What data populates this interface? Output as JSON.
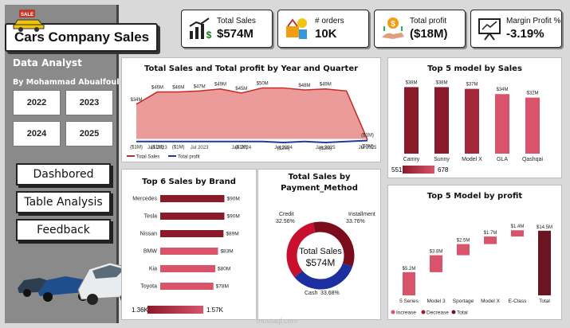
{
  "sidebar": {
    "title": "Cars Company Sales",
    "logo_text": "SALE",
    "role": "Data Analyst",
    "author": "By Mohammad Abualfoul",
    "years": [
      "2022",
      "2023",
      "2024",
      "2025"
    ],
    "nav": [
      "Dashbored",
      "Table Analysis",
      "Feedback"
    ]
  },
  "kpis": [
    {
      "label": "Total Sales",
      "value": "$574M",
      "icon": "sales-chart-icon"
    },
    {
      "label": "# orders",
      "value": "10K",
      "icon": "orders-icon"
    },
    {
      "label": "Total profit",
      "value": "($18M)",
      "icon": "profit-icon"
    },
    {
      "label": "Margin Profit %",
      "value": "-3.19%",
      "icon": "margin-board-icon"
    }
  ],
  "colors": {
    "sales": "#e8908f",
    "sales_line": "#c62828",
    "profit": "#1e3a9a",
    "bar": "#8b1a2b",
    "bar_light": "#d9536b",
    "donut_red": "#c8102e",
    "donut_blue": "#1c2f9e"
  },
  "charts": {
    "area": {
      "title": "Total Sales and Total profit by Year and Quarter",
      "legend": [
        "Total Sales",
        "Total profit"
      ],
      "x_ticks": [
        "Jan 2023",
        "Jul 2023",
        "Jan 2024",
        "Jul 2024",
        "Jan 2025",
        "Jul 2025"
      ]
    },
    "top5_sales": {
      "title": "Top 5 model by Sales",
      "slicer_min": "551",
      "slicer_max": "678"
    },
    "brands": {
      "title": "Top 6 Sales by Brand",
      "slicer_min": "1.36K",
      "slicer_max": "1.57K"
    },
    "payment": {
      "title_line1": "Total Sales by",
      "title_line2": "Payment_Method",
      "center_label": "Total Sales",
      "center_value": "$574M",
      "slices": [
        {
          "name": "Credit",
          "pct": "32.56%",
          "value": 32.56
        },
        {
          "name": "Installment",
          "pct": "33.76%",
          "value": 33.76
        },
        {
          "name": "Cash",
          "pct": "33.68%",
          "value": 33.68
        }
      ]
    },
    "waterfall": {
      "title": "Top 5 Model by profit",
      "legend": [
        "Increase",
        "Decrease",
        "Total"
      ]
    }
  },
  "chart_data": [
    {
      "type": "area",
      "title": "Total Sales and Total profit by Year and Quarter",
      "series": [
        {
          "name": "Total Sales",
          "values": [
            34,
            46,
            46,
            47,
            49,
            45,
            50,
            50,
            48,
            49,
            47,
            -1
          ]
        },
        {
          "name": "Total profit",
          "values": [
            -1,
            -1,
            -1,
            -1,
            -1,
            -1,
            -1,
            -2,
            -1,
            -2,
            -1,
            0
          ]
        }
      ],
      "labels_sales": [
        "$34M",
        "$46M",
        "$46M",
        "$47M",
        "$49M",
        "$45M",
        "$50M",
        "",
        "$48M",
        "$49M",
        "",
        "($1M)"
      ],
      "labels_profit": [
        "($1M)",
        "($1M)",
        "($1M)",
        "",
        "",
        "($1M)",
        "",
        "($2M)",
        "",
        "($2M)",
        "",
        "($0M)"
      ]
    },
    {
      "type": "bar",
      "title": "Top 5 model by Sales",
      "categories": [
        "Camry",
        "Sunny",
        "Model X",
        "GLA",
        "Qashqai"
      ],
      "values": [
        38,
        38,
        37,
        34,
        32
      ],
      "labels": [
        "$38M",
        "$38M",
        "$37M",
        "$34M",
        "$32M"
      ]
    },
    {
      "type": "bar",
      "title": "Top 6 Sales by Brand",
      "categories": [
        "Mercedes",
        "Tesla",
        "Nissan",
        "BMW",
        "Kia",
        "Toyota"
      ],
      "values": [
        90,
        90,
        89,
        83,
        80,
        78
      ],
      "labels": [
        "$90M",
        "$90M",
        "$89M",
        "$83M",
        "$80M",
        "$78M"
      ]
    },
    {
      "type": "pie",
      "title": "Total Sales by Payment_Method",
      "categories": [
        "Credit",
        "Installment",
        "Cash"
      ],
      "values": [
        32.56,
        33.76,
        33.68
      ]
    },
    {
      "type": "bar",
      "title": "Top 5 Model by profit",
      "categories": [
        "5 Series",
        "Model 3",
        "Sportage",
        "Model X",
        "E-Class",
        "Total"
      ],
      "values": [
        5.2,
        3.8,
        2.5,
        1.7,
        1.4,
        14.5
      ],
      "labels": [
        "$5.2M",
        "$3.8M",
        "$2.5M",
        "$1.7M",
        "$1.4M",
        "$14.5M"
      ]
    }
  ],
  "watermark": "mostaql.com"
}
